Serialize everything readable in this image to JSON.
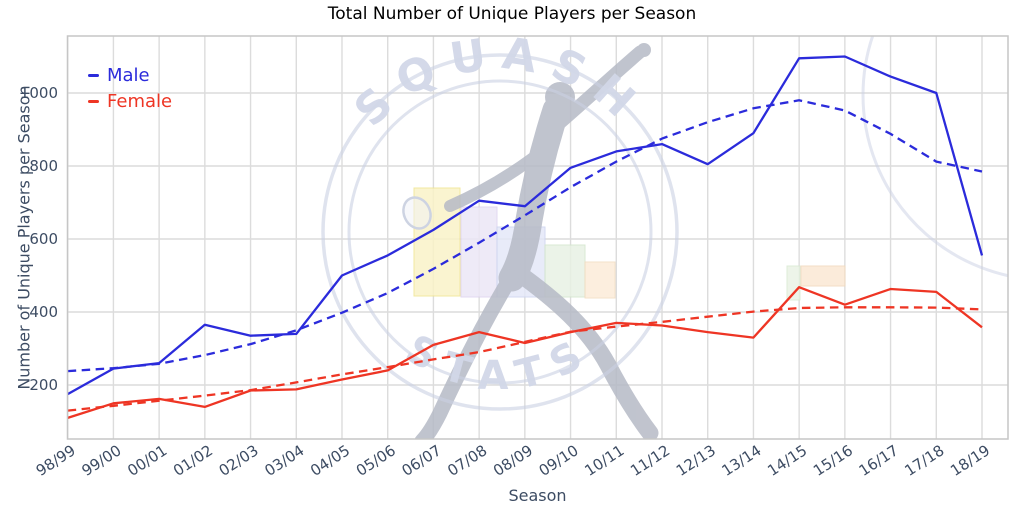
{
  "chart_data": {
    "type": "line",
    "title": "Total Number of Unique Players per Season",
    "xlabel": "Season",
    "ylabel": "Number of Unique Players per Season",
    "categories": [
      "98/99",
      "99/00",
      "00/01",
      "01/02",
      "02/03",
      "03/04",
      "04/05",
      "05/06",
      "06/07",
      "07/08",
      "08/09",
      "09/10",
      "10/11",
      "11/12",
      "12/13",
      "13/14",
      "14/15",
      "15/16",
      "16/17",
      "17/18",
      "18/19"
    ],
    "yticks": [
      200,
      400,
      600,
      800,
      1000
    ],
    "ylim": [
      50,
      1160
    ],
    "grid": true,
    "legend_position": "upper-left",
    "series": [
      {
        "name": "Male",
        "style": "solid",
        "color": "#2b2bdb",
        "values": [
          175,
          245,
          260,
          365,
          335,
          340,
          500,
          555,
          625,
          705,
          690,
          795,
          840,
          860,
          805,
          890,
          1095,
          1100,
          1045,
          1000,
          555
        ]
      },
      {
        "name": "Male trend",
        "style": "dashed",
        "color": "#2b2bdb",
        "values": [
          238,
          246,
          258,
          282,
          312,
          350,
          398,
          452,
          518,
          590,
          665,
          742,
          812,
          875,
          920,
          958,
          980,
          952,
          888,
          812,
          785
        ]
      },
      {
        "name": "Female",
        "style": "solid",
        "color": "#ee3524",
        "values": [
          110,
          150,
          162,
          140,
          185,
          188,
          215,
          240,
          310,
          345,
          315,
          345,
          370,
          363,
          345,
          330,
          468,
          420,
          463,
          455,
          358
        ]
      },
      {
        "name": "Female trend",
        "style": "dashed",
        "color": "#ee3524",
        "values": [
          130,
          143,
          157,
          171,
          186,
          207,
          229,
          249,
          270,
          290,
          318,
          346,
          360,
          373,
          387,
          401,
          411,
          413,
          413,
          412,
          407
        ]
      }
    ]
  },
  "legend": [
    {
      "label": "Male",
      "color": "#2b2bdb"
    },
    {
      "label": "Female",
      "color": "#ee3524"
    }
  ],
  "watermark": {
    "text_top": "SQUASH",
    "text_bottom": "STATS"
  },
  "style": {
    "male_color": "#2b2bdb",
    "female_color": "#ee3524",
    "tick_label_color": "#3d4c63",
    "grid_color": "#dcdcdc",
    "border_color": "#c6c6c6",
    "watermark_text_color": "#d2d8e8",
    "watermark_ring_color": "#c9d0e3",
    "silhouette_color": "#b6bac6"
  }
}
